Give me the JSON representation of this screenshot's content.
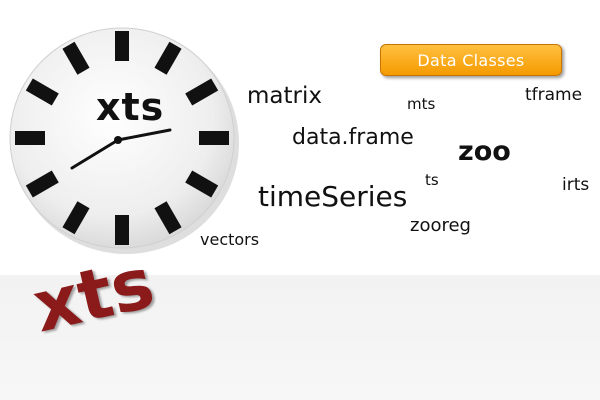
{
  "clock": {
    "label": "xts"
  },
  "logo": {
    "text": "xts",
    "color": "#8b1a1a"
  },
  "badge": {
    "label": "Data Classes",
    "color": "#f5a300"
  },
  "words": {
    "matrix": "matrix",
    "mts": "mts",
    "tframe": "tframe",
    "dataframe": "data.frame",
    "zoo": "zoo",
    "ts": "ts",
    "irts": "irts",
    "timeseries": "timeSeries",
    "zooreg": "zooreg",
    "vectors": "vectors"
  },
  "colors": {
    "text": "#111111",
    "clock_face": "#ececec",
    "clock_marks": "#111111",
    "floor": "#f4f4f4"
  }
}
